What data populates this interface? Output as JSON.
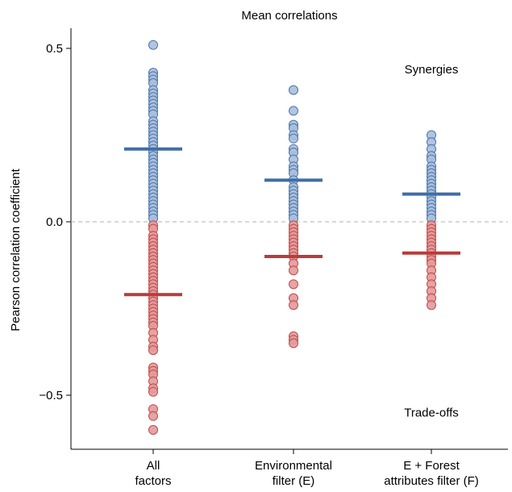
{
  "chart_data": {
    "type": "scatter",
    "title": "Mean correlations",
    "ylabel": "Pearson correlation coefficient",
    "xlabel": "",
    "ylim": [
      -0.62,
      0.56
    ],
    "yticks": [
      {
        "value": 0.5,
        "label": "0.5"
      },
      {
        "value": 0.0,
        "label": "0.0"
      },
      {
        "value": -0.5,
        "label": "−0.5"
      }
    ],
    "reference_line": {
      "value": 0.0,
      "style": "dashed",
      "color": "#b0b0b0"
    },
    "annotations": [
      {
        "text": "Synergies",
        "x": 3,
        "y": 0.44
      },
      {
        "text": "Trade-offs",
        "x": 3,
        "y": -0.55
      }
    ],
    "colors": {
      "positive_fill": "#a8bfde",
      "positive_stroke": "#4a74a8",
      "positive_mean": "#3f6ea6",
      "negative_fill": "#e49a9a",
      "negative_stroke": "#c04848",
      "negative_mean": "#b83c3c"
    },
    "groups": [
      {
        "label_lines": [
          "All",
          "factors"
        ],
        "mean_positive": 0.21,
        "mean_negative": -0.21,
        "values": [
          0.51,
          0.43,
          0.42,
          0.41,
          0.4,
          0.38,
          0.37,
          0.36,
          0.35,
          0.34,
          0.33,
          0.32,
          0.31,
          0.29,
          0.28,
          0.27,
          0.26,
          0.25,
          0.24,
          0.23,
          0.22,
          0.21,
          0.2,
          0.19,
          0.18,
          0.17,
          0.16,
          0.15,
          0.14,
          0.13,
          0.12,
          0.11,
          0.1,
          0.09,
          0.08,
          0.07,
          0.06,
          0.05,
          0.04,
          0.03,
          0.02,
          0.01,
          -0.01,
          -0.02,
          -0.04,
          -0.05,
          -0.06,
          -0.07,
          -0.08,
          -0.09,
          -0.1,
          -0.11,
          -0.12,
          -0.13,
          -0.14,
          -0.15,
          -0.16,
          -0.17,
          -0.18,
          -0.19,
          -0.2,
          -0.21,
          -0.22,
          -0.23,
          -0.24,
          -0.25,
          -0.26,
          -0.27,
          -0.28,
          -0.29,
          -0.3,
          -0.32,
          -0.34,
          -0.36,
          -0.37,
          -0.42,
          -0.43,
          -0.44,
          -0.46,
          -0.48,
          -0.49,
          -0.54,
          -0.56,
          -0.6
        ]
      },
      {
        "label_lines": [
          "Environmental",
          "filter (E)"
        ],
        "mean_positive": 0.12,
        "mean_negative": -0.1,
        "values": [
          0.38,
          0.32,
          0.28,
          0.27,
          0.25,
          0.24,
          0.21,
          0.2,
          0.18,
          0.16,
          0.15,
          0.14,
          0.12,
          0.1,
          0.09,
          0.08,
          0.07,
          0.06,
          0.05,
          0.04,
          0.03,
          0.02,
          0.01,
          -0.01,
          -0.02,
          -0.03,
          -0.04,
          -0.05,
          -0.06,
          -0.07,
          -0.08,
          -0.09,
          -0.1,
          -0.12,
          -0.14,
          -0.18,
          -0.22,
          -0.24,
          -0.33,
          -0.34,
          -0.35
        ]
      },
      {
        "label_lines": [
          "E + Forest",
          "attributes filter (F)"
        ],
        "mean_positive": 0.08,
        "mean_negative": -0.09,
        "values": [
          0.25,
          0.23,
          0.21,
          0.19,
          0.18,
          0.16,
          0.15,
          0.14,
          0.13,
          0.12,
          0.11,
          0.1,
          0.09,
          0.08,
          0.07,
          0.06,
          0.05,
          0.04,
          0.03,
          0.02,
          0.01,
          -0.01,
          -0.02,
          -0.03,
          -0.04,
          -0.05,
          -0.06,
          -0.07,
          -0.08,
          -0.09,
          -0.1,
          -0.11,
          -0.12,
          -0.14,
          -0.16,
          -0.18,
          -0.2,
          -0.22,
          -0.24
        ]
      }
    ]
  }
}
